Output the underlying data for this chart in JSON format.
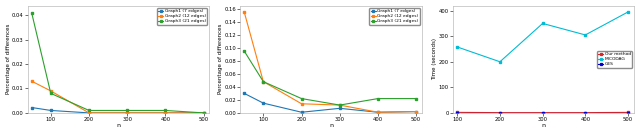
{
  "n_values": [
    100,
    200,
    300,
    400,
    500
  ],
  "n_values_p1": [
    50,
    100,
    200,
    300,
    400,
    500
  ],
  "n_values_p2": [
    50,
    100,
    200,
    300,
    400,
    500
  ],
  "plot1": {
    "graph1": [
      0.0022,
      0.001,
      0.0,
      0.0,
      0.0,
      0.0
    ],
    "graph2": [
      0.013,
      0.009,
      0.0,
      0.0,
      0.0,
      0.0
    ],
    "graph3": [
      0.041,
      0.008,
      0.001,
      0.001,
      0.001,
      0.0
    ],
    "ylabel": "Percentage of differences",
    "xlabel": "n",
    "ylim": [
      0,
      0.044
    ],
    "yticks": [
      0.0,
      0.01,
      0.02,
      0.03,
      0.04
    ],
    "xticks": [
      100,
      200,
      300,
      400,
      500
    ]
  },
  "plot2": {
    "graph1": [
      0.03,
      0.015,
      0.001,
      0.007,
      0.001,
      0.002
    ],
    "graph2": [
      0.155,
      0.048,
      0.014,
      0.012,
      0.001,
      0.002
    ],
    "graph3": [
      0.095,
      0.048,
      0.022,
      0.012,
      0.022,
      0.022
    ],
    "ylabel": "Percentage of differences",
    "xlabel": "n",
    "ylim": [
      0,
      0.165
    ],
    "yticks": [
      0.0,
      0.02,
      0.04,
      0.06,
      0.08,
      0.1,
      0.12,
      0.14,
      0.16
    ],
    "xticks": [
      100,
      200,
      300,
      400,
      500
    ]
  },
  "plot3": {
    "our_method": [
      2,
      1,
      1,
      1,
      2
    ],
    "micodag": [
      258,
      200,
      350,
      305,
      395
    ],
    "ges": [
      1,
      1,
      1,
      1,
      1
    ],
    "ylabel": "Time (seconds)",
    "xlabel": "n",
    "ylim": [
      0,
      420
    ],
    "yticks": [
      0,
      100,
      200,
      300,
      400
    ],
    "xticks": [
      100,
      200,
      300,
      400,
      500
    ]
  },
  "colors": {
    "graph1": "#1f77b4",
    "graph2": "#ff7f0e",
    "graph3": "#2ca02c",
    "our_method": "#d62728",
    "micodag": "#00bcd4",
    "ges": "#0000cc"
  },
  "legend_labels": {
    "graph1": "Graph1 (7 edges)",
    "graph2": "Graph2 (12 edges)",
    "graph3": "Graph3 (21 edges)",
    "our_method": "Our method",
    "micodag": "MICODAG",
    "ges": "GES"
  },
  "bg_color": "#ffffff",
  "marker": "s",
  "markersize": 2.0,
  "linewidth": 0.8
}
